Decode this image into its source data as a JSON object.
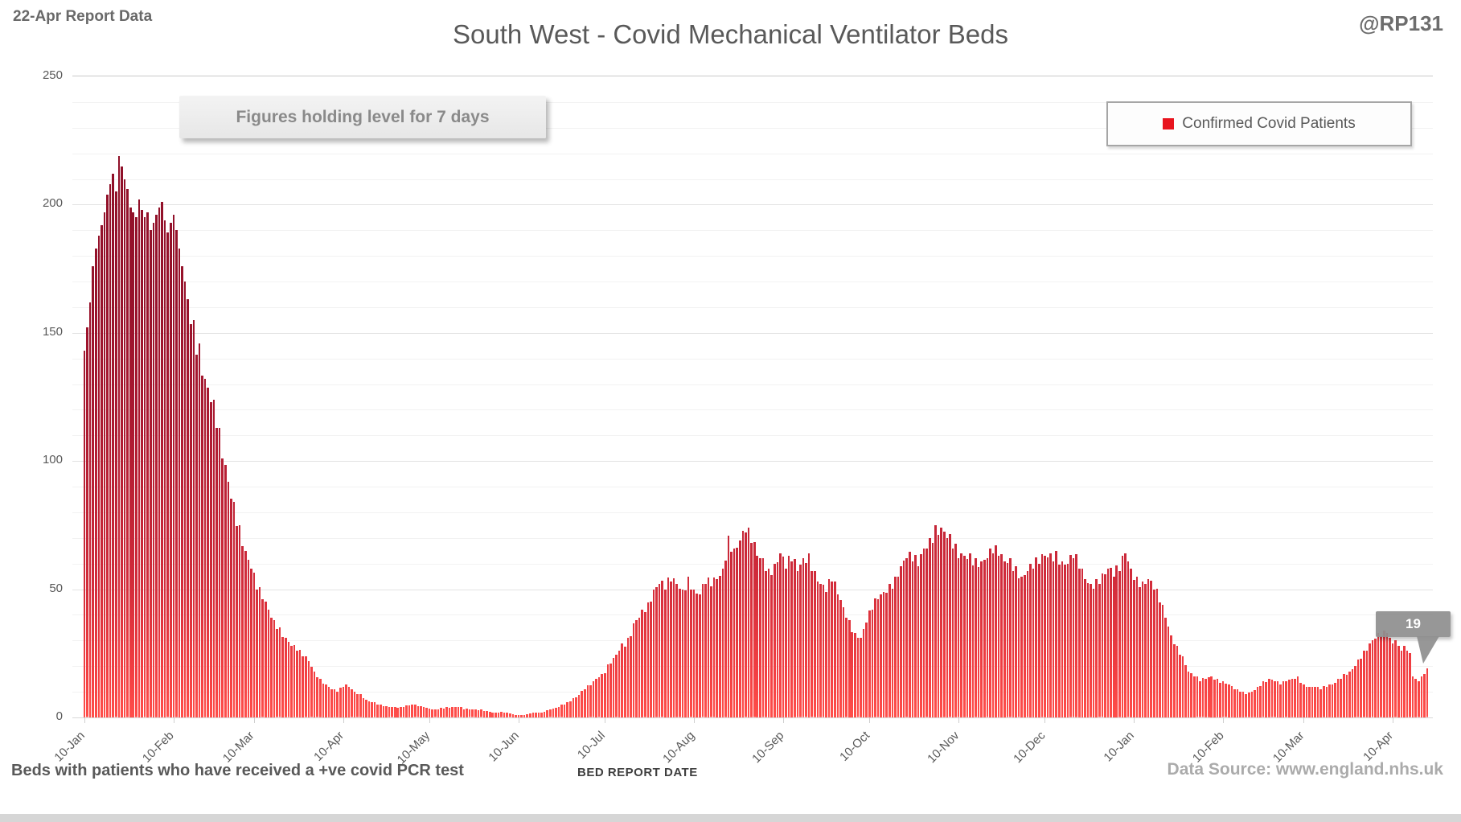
{
  "header": {
    "report_label": "22-Apr Report Data",
    "title": "South West - Covid Mechanical Ventilator Beds",
    "handle": "@RP131"
  },
  "annotation": {
    "text": "Figures holding level for 7 days"
  },
  "legend": {
    "label": "Confirmed Covid Patients",
    "marker_color": "#e8141e"
  },
  "callout": {
    "value": "19"
  },
  "footer": {
    "left_note": "Beds with patients who have received a +ve covid PCR test",
    "axis_title": "BED REPORT DATE",
    "source": "Data Source: www.england.nhs.uk"
  },
  "colors": {
    "text": "#595959",
    "muted_text": "#ababab",
    "grid_minor": "#f2f2f2",
    "grid_major": "#e2e2e2",
    "callout_gray": "#8f8f8f"
  },
  "chart_data": {
    "type": "bar",
    "title": "South West - Covid Mechanical Ventilator Beds",
    "series_name": "Confirmed Covid Patients",
    "xlabel": "BED REPORT DATE",
    "ylabel": "",
    "ylim": [
      0,
      250
    ],
    "y_ticks": [
      0,
      50,
      100,
      150,
      200,
      250
    ],
    "y_minor_step": 10,
    "grid": "horizontal",
    "legend_position": "top-right",
    "sampling": "daily bars, 10-Jan to 22-Apr of following year",
    "days_total": 468,
    "x_tick_labels": [
      "10-Jan",
      "10-Feb",
      "10-Mar",
      "10-Apr",
      "10-May",
      "10-Jun",
      "10-Jul",
      "10-Aug",
      "10-Sep",
      "10-Oct",
      "10-Nov",
      "10-Dec",
      "10-Jan",
      "10-Feb",
      "10-Mar",
      "10-Apr"
    ],
    "x_tick_days": [
      0,
      31,
      59,
      90,
      120,
      151,
      181,
      212,
      243,
      273,
      304,
      334,
      365,
      396,
      424,
      455
    ],
    "last_value": 19,
    "last_value_label": "19",
    "bar_gradient": [
      [
        0,
        "#ff4e4a"
      ],
      [
        0.07,
        "#f23f42"
      ],
      [
        0.22,
        "#d02b3a"
      ],
      [
        0.45,
        "#ac1a31"
      ],
      [
        0.65,
        "#97122b"
      ],
      [
        1,
        "#8b0f27"
      ]
    ],
    "keypoints": [
      [
        0,
        143
      ],
      [
        1,
        152
      ],
      [
        2,
        162
      ],
      [
        3,
        176
      ],
      [
        4,
        183
      ],
      [
        5,
        188
      ],
      [
        6,
        192
      ],
      [
        7,
        197
      ],
      [
        8,
        204
      ],
      [
        9,
        208
      ],
      [
        10,
        212
      ],
      [
        11,
        205
      ],
      [
        12,
        219
      ],
      [
        13,
        215
      ],
      [
        14,
        210
      ],
      [
        15,
        206
      ],
      [
        16,
        199
      ],
      [
        17,
        197
      ],
      [
        18,
        195
      ],
      [
        19,
        202
      ],
      [
        20,
        198
      ],
      [
        21,
        195
      ],
      [
        22,
        197
      ],
      [
        23,
        190
      ],
      [
        24,
        193
      ],
      [
        25,
        196
      ],
      [
        26,
        199
      ],
      [
        27,
        201
      ],
      [
        28,
        194
      ],
      [
        29,
        189
      ],
      [
        30,
        193
      ],
      [
        31,
        196
      ],
      [
        32,
        190
      ],
      [
        33,
        183
      ],
      [
        34,
        176
      ],
      [
        35,
        170
      ],
      [
        36,
        163
      ],
      [
        38,
        155
      ],
      [
        40,
        146
      ],
      [
        42,
        132
      ],
      [
        44,
        123
      ],
      [
        46,
        113
      ],
      [
        48,
        101
      ],
      [
        50,
        92
      ],
      [
        52,
        84
      ],
      [
        54,
        75
      ],
      [
        56,
        65
      ],
      [
        58,
        58
      ],
      [
        60,
        50
      ],
      [
        62,
        46
      ],
      [
        64,
        42
      ],
      [
        66,
        38
      ],
      [
        68,
        35
      ],
      [
        70,
        31
      ],
      [
        72,
        28
      ],
      [
        74,
        26
      ],
      [
        76,
        24
      ],
      [
        78,
        22
      ],
      [
        80,
        18
      ],
      [
        82,
        15
      ],
      [
        84,
        13
      ],
      [
        86,
        11
      ],
      [
        88,
        10
      ],
      [
        90,
        12
      ],
      [
        91,
        13
      ],
      [
        92,
        12
      ],
      [
        94,
        10
      ],
      [
        96,
        9
      ],
      [
        98,
        7
      ],
      [
        100,
        6
      ],
      [
        103,
        5
      ],
      [
        106,
        4
      ],
      [
        110,
        4
      ],
      [
        114,
        5
      ],
      [
        118,
        4
      ],
      [
        122,
        3
      ],
      [
        126,
        4
      ],
      [
        130,
        4
      ],
      [
        134,
        3
      ],
      [
        138,
        3
      ],
      [
        142,
        2
      ],
      [
        146,
        2
      ],
      [
        150,
        1
      ],
      [
        153,
        1
      ],
      [
        156,
        2
      ],
      [
        159,
        2
      ],
      [
        162,
        3
      ],
      [
        165,
        4
      ],
      [
        168,
        6
      ],
      [
        171,
        8
      ],
      [
        174,
        11
      ],
      [
        177,
        14
      ],
      [
        180,
        17
      ],
      [
        183,
        21
      ],
      [
        186,
        26
      ],
      [
        189,
        31
      ],
      [
        192,
        38
      ],
      [
        194,
        42
      ],
      [
        196,
        45
      ],
      [
        198,
        50
      ],
      [
        200,
        52
      ],
      [
        202,
        50
      ],
      [
        204,
        53
      ],
      [
        206,
        52
      ],
      [
        208,
        50
      ],
      [
        210,
        55
      ],
      [
        212,
        50
      ],
      [
        214,
        48
      ],
      [
        216,
        52
      ],
      [
        218,
        51
      ],
      [
        220,
        54
      ],
      [
        222,
        58
      ],
      [
        224,
        71
      ],
      [
        226,
        66
      ],
      [
        228,
        69
      ],
      [
        230,
        72
      ],
      [
        232,
        68
      ],
      [
        234,
        63
      ],
      [
        236,
        62
      ],
      [
        238,
        58
      ],
      [
        240,
        60
      ],
      [
        242,
        64
      ],
      [
        244,
        58
      ],
      [
        246,
        61
      ],
      [
        248,
        57
      ],
      [
        250,
        62
      ],
      [
        252,
        64
      ],
      [
        254,
        57
      ],
      [
        256,
        52
      ],
      [
        258,
        49
      ],
      [
        260,
        53
      ],
      [
        262,
        48
      ],
      [
        264,
        43
      ],
      [
        266,
        38
      ],
      [
        268,
        33
      ],
      [
        270,
        31
      ],
      [
        272,
        37
      ],
      [
        274,
        42
      ],
      [
        276,
        46
      ],
      [
        278,
        49
      ],
      [
        280,
        52
      ],
      [
        282,
        55
      ],
      [
        284,
        59
      ],
      [
        286,
        62
      ],
      [
        288,
        61
      ],
      [
        290,
        59
      ],
      [
        292,
        66
      ],
      [
        294,
        70
      ],
      [
        296,
        75
      ],
      [
        298,
        74
      ],
      [
        300,
        70
      ],
      [
        302,
        66
      ],
      [
        304,
        62
      ],
      [
        306,
        63
      ],
      [
        308,
        64
      ],
      [
        310,
        62
      ],
      [
        312,
        61
      ],
      [
        314,
        62
      ],
      [
        316,
        64
      ],
      [
        318,
        63
      ],
      [
        320,
        61
      ],
      [
        322,
        62
      ],
      [
        324,
        59
      ],
      [
        326,
        55
      ],
      [
        328,
        57
      ],
      [
        330,
        58
      ],
      [
        332,
        60
      ],
      [
        334,
        63
      ],
      [
        336,
        64
      ],
      [
        338,
        65
      ],
      [
        340,
        61
      ],
      [
        342,
        60
      ],
      [
        344,
        62
      ],
      [
        346,
        58
      ],
      [
        348,
        54
      ],
      [
        350,
        52
      ],
      [
        352,
        54
      ],
      [
        354,
        56
      ],
      [
        356,
        58
      ],
      [
        358,
        55
      ],
      [
        360,
        57
      ],
      [
        362,
        64
      ],
      [
        364,
        58
      ],
      [
        366,
        55
      ],
      [
        368,
        53
      ],
      [
        370,
        54
      ],
      [
        372,
        50
      ],
      [
        374,
        45
      ],
      [
        376,
        39
      ],
      [
        378,
        32
      ],
      [
        380,
        28
      ],
      [
        382,
        24
      ],
      [
        384,
        18
      ],
      [
        386,
        16
      ],
      [
        388,
        14
      ],
      [
        390,
        15
      ],
      [
        392,
        16
      ],
      [
        394,
        15
      ],
      [
        396,
        14
      ],
      [
        398,
        13
      ],
      [
        400,
        11
      ],
      [
        402,
        10
      ],
      [
        404,
        9
      ],
      [
        406,
        10
      ],
      [
        408,
        12
      ],
      [
        410,
        14
      ],
      [
        412,
        15
      ],
      [
        414,
        14
      ],
      [
        416,
        13
      ],
      [
        418,
        14
      ],
      [
        420,
        15
      ],
      [
        422,
        16
      ],
      [
        424,
        13
      ],
      [
        426,
        12
      ],
      [
        428,
        12
      ],
      [
        430,
        11
      ],
      [
        432,
        12
      ],
      [
        434,
        13
      ],
      [
        436,
        15
      ],
      [
        438,
        17
      ],
      [
        440,
        18
      ],
      [
        442,
        20
      ],
      [
        444,
        23
      ],
      [
        446,
        26
      ],
      [
        448,
        30
      ],
      [
        450,
        33
      ],
      [
        452,
        34
      ],
      [
        453,
        33
      ],
      [
        454,
        31
      ],
      [
        455,
        29
      ],
      [
        456,
        30
      ],
      [
        457,
        28
      ],
      [
        458,
        26
      ],
      [
        459,
        28
      ],
      [
        460,
        26
      ],
      [
        461,
        25
      ],
      [
        462,
        16
      ],
      [
        463,
        15
      ],
      [
        464,
        14
      ],
      [
        465,
        16
      ],
      [
        466,
        17
      ],
      [
        467,
        19
      ]
    ]
  }
}
